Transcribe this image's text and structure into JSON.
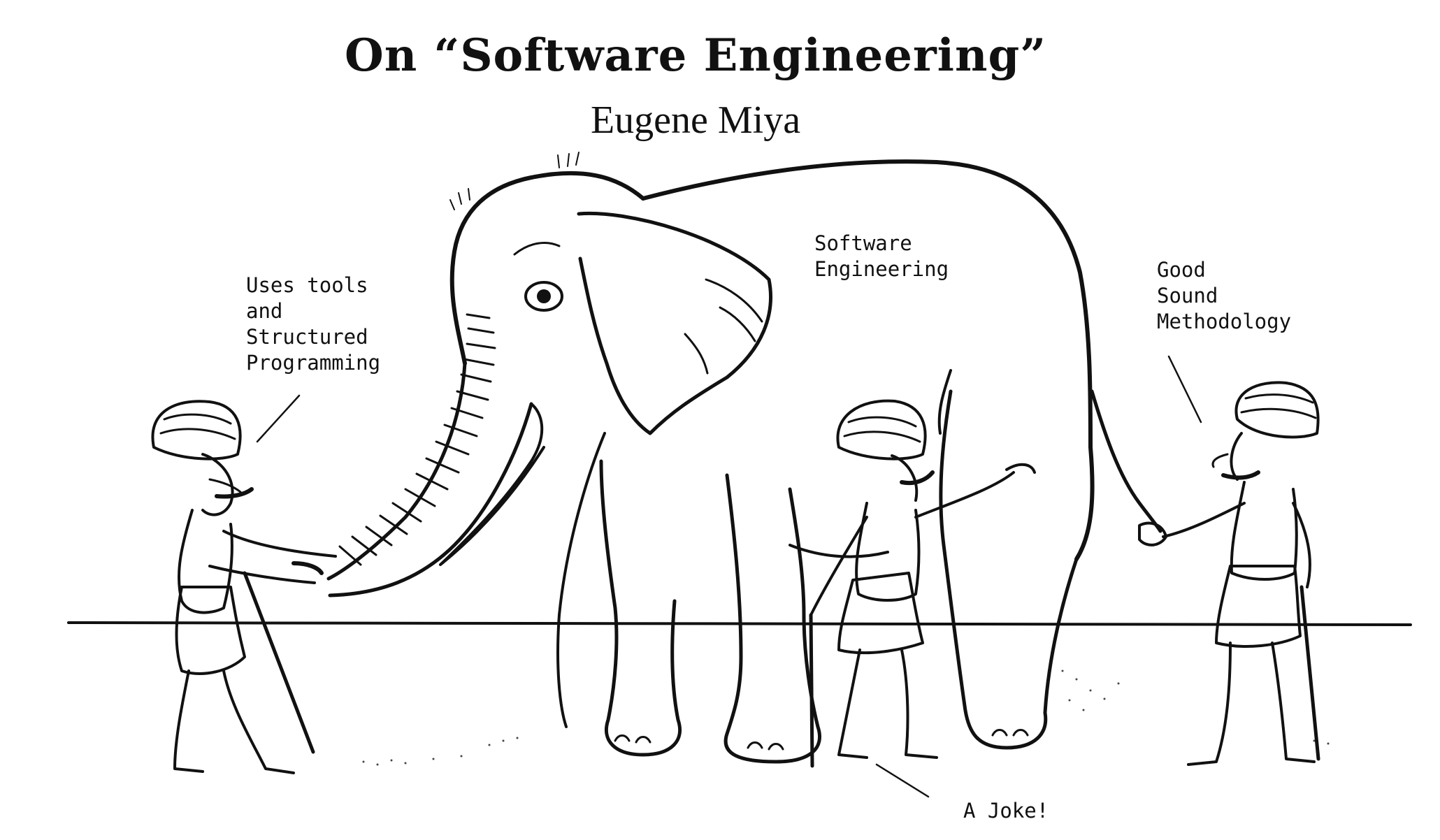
{
  "figure": {
    "title": "On “Software Engineering”",
    "author": "Eugene Miya",
    "labels": {
      "left": "Uses tools\nand\nStructured\nProgramming",
      "center": "Software\nEngineering",
      "right": "Good\nSound\nMethodology",
      "joke": "A Joke!"
    }
  }
}
